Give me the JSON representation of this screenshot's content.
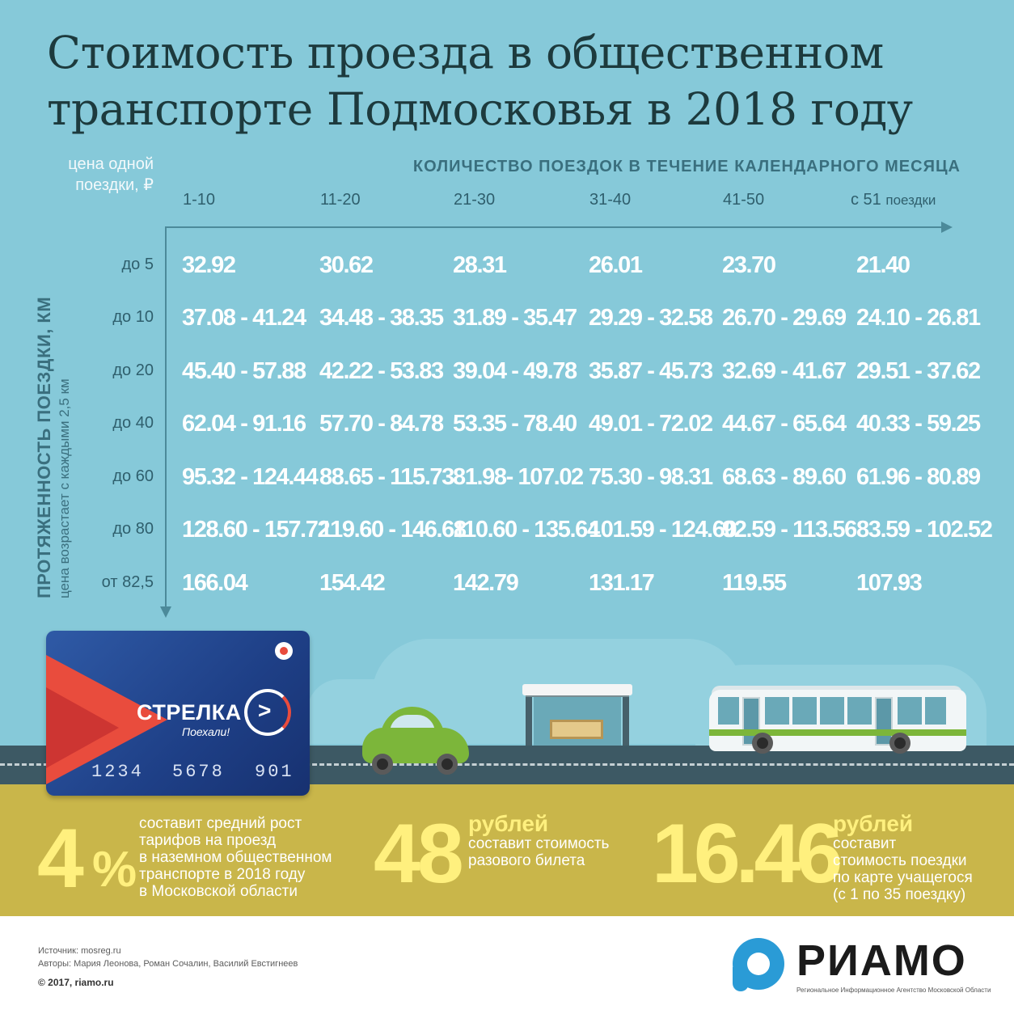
{
  "title": {
    "line1": "Стоимость проезда в общественном",
    "line2": "транспорте Подмосковья в 2018 году"
  },
  "axes": {
    "price_label_line1": "цена одной",
    "price_label_line2": "поездки, ₽",
    "trips_header": "КОЛИЧЕСТВО ПОЕЗДОК В ТЕЧЕНИЕ КАЛЕНДАРНОГО МЕСЯЦА",
    "distance_label": "ПРОТЯЖЕННОСТЬ ПОЕЗДКИ, КМ",
    "distance_note": "цена возрастает с каждыми 2,5 км"
  },
  "table": {
    "columns": [
      "1-10",
      "11-20",
      "21-30",
      "31-40",
      "41-50"
    ],
    "last_column_prefix": "с 51",
    "last_column_suffix": "поездки",
    "rows": [
      {
        "label": "до 5",
        "cells": [
          "32.92",
          "30.62",
          "28.31",
          "26.01",
          "23.70",
          "21.40"
        ]
      },
      {
        "label": "до 10",
        "cells": [
          "37.08 - 41.24",
          "34.48 - 38.35",
          "31.89 - 35.47",
          "29.29 - 32.58",
          "26.70 - 29.69",
          "24.10 - 26.81"
        ]
      },
      {
        "label": "до 20",
        "cells": [
          "45.40 - 57.88",
          "42.22 - 53.83",
          "39.04 - 49.78",
          "35.87 - 45.73",
          "32.69 - 41.67",
          "29.51 - 37.62"
        ]
      },
      {
        "label": "до 40",
        "cells": [
          "62.04 - 91.16",
          "57.70 - 84.78",
          "53.35 - 78.40",
          "49.01 - 72.02",
          "44.67 - 65.64",
          "40.33 - 59.25"
        ]
      },
      {
        "label": "до 60",
        "cells": [
          "95.32 - 124.44",
          "88.65 - 115.73",
          "81.98-  107.02",
          "75.30 - 98.31",
          "68.63 - 89.60",
          "61.96 - 80.89"
        ]
      },
      {
        "label": "до 80",
        "cells": [
          "128.60 - 157.72",
          "119.60 - 146.68",
          "110.60 - 135.64",
          "101.59 - 124.60",
          "92.59 - 113.56",
          "83.59 - 102.52"
        ]
      },
      {
        "label": "от 82,5",
        "cells": [
          "166.04",
          "154.42",
          "142.79",
          "131.17",
          "119.55",
          "107.93"
        ]
      }
    ]
  },
  "card": {
    "brand": "СТРЕЛКА",
    "slogan": "Поехали!",
    "number_parts": [
      "1234",
      "5678",
      "901"
    ]
  },
  "stats": [
    {
      "value": "4",
      "unit": "%",
      "text": [
        "составит средний рост",
        "тарифов на проезд",
        "в наземном общественном",
        "транспорте в 2018 году",
        "в Московской области"
      ]
    },
    {
      "value": "48",
      "unit": "рублей",
      "text": [
        "составит стоимость",
        "разового билета"
      ]
    },
    {
      "value": "16.46",
      "unit": "рублей",
      "text": [
        "составит",
        "стоимость поездки",
        "по карте учащегося",
        "(с 1 по 35 поездку)"
      ]
    }
  ],
  "footer": {
    "source": "Источник: mosreg.ru",
    "authors": "Авторы: Мария Леонова, Роман Сочалин, Василий Евстигнеев",
    "copyright": "© 2017, riamo.ru",
    "logo_text": "РИАМО",
    "logo_subtitle": "Региональное Информационное Агентство Московской Области"
  },
  "icons": [
    "card-logo-icon",
    "arrow-circle-icon",
    "car-icon",
    "bus-icon",
    "bus-stop-icon",
    "riamo-logo-icon"
  ]
}
